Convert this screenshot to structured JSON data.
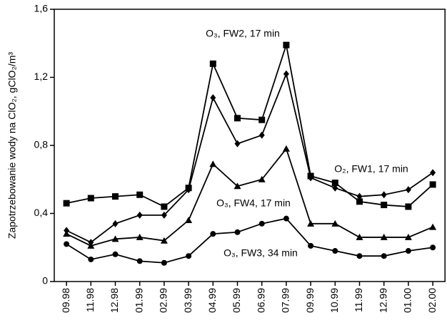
{
  "chart_data": {
    "type": "line",
    "y_label": "Zapotrzebowanie wody na ClO₂, gClO₂/m³",
    "categories": [
      "09.98",
      "11.98",
      "12.98",
      "01.99",
      "02.99",
      "03.99",
      "04.99",
      "05.99",
      "06.99",
      "07.99",
      "09.99",
      "10.99",
      "11.99",
      "12.99",
      "01.00",
      "02.00"
    ],
    "series": [
      {
        "name": "O₃, FW2, 17 min",
        "color": "#000000",
        "marker": "square",
        "values": [
          0.46,
          0.49,
          0.5,
          0.51,
          0.44,
          0.55,
          1.28,
          0.96,
          0.95,
          1.39,
          0.62,
          0.58,
          0.47,
          0.45,
          0.44,
          0.57
        ]
      },
      {
        "name": "O₂, FW1, 17 min",
        "color": "#000000",
        "marker": "diamond",
        "values": [
          0.3,
          0.23,
          0.34,
          0.39,
          0.39,
          0.54,
          1.08,
          0.81,
          0.86,
          1.22,
          0.61,
          0.55,
          0.5,
          0.51,
          0.54,
          0.64
        ]
      },
      {
        "name": "O₃, FW4, 17 min",
        "color": "#000000",
        "marker": "triangle",
        "values": [
          0.28,
          0.21,
          0.25,
          0.26,
          0.24,
          0.36,
          0.69,
          0.56,
          0.6,
          0.78,
          0.34,
          0.34,
          0.26,
          0.26,
          0.26,
          0.32
        ]
      },
      {
        "name": "O₃, FW3, 34 min",
        "color": "#000000",
        "marker": "circle",
        "values": [
          0.22,
          0.13,
          0.16,
          0.12,
          0.11,
          0.15,
          0.28,
          0.29,
          0.34,
          0.37,
          0.21,
          0.18,
          0.15,
          0.15,
          0.18,
          0.2
        ]
      }
    ],
    "ylim": [
      0,
      1.6
    ],
    "yticks": [
      0,
      {
        "value": 0.4,
        "label": "0,4"
      },
      {
        "value": 0.8,
        "label": "0,8"
      },
      {
        "value": 1.2,
        "label": "1,2"
      },
      {
        "value": 1.6,
        "label": "1,6"
      }
    ],
    "grid": false
  }
}
